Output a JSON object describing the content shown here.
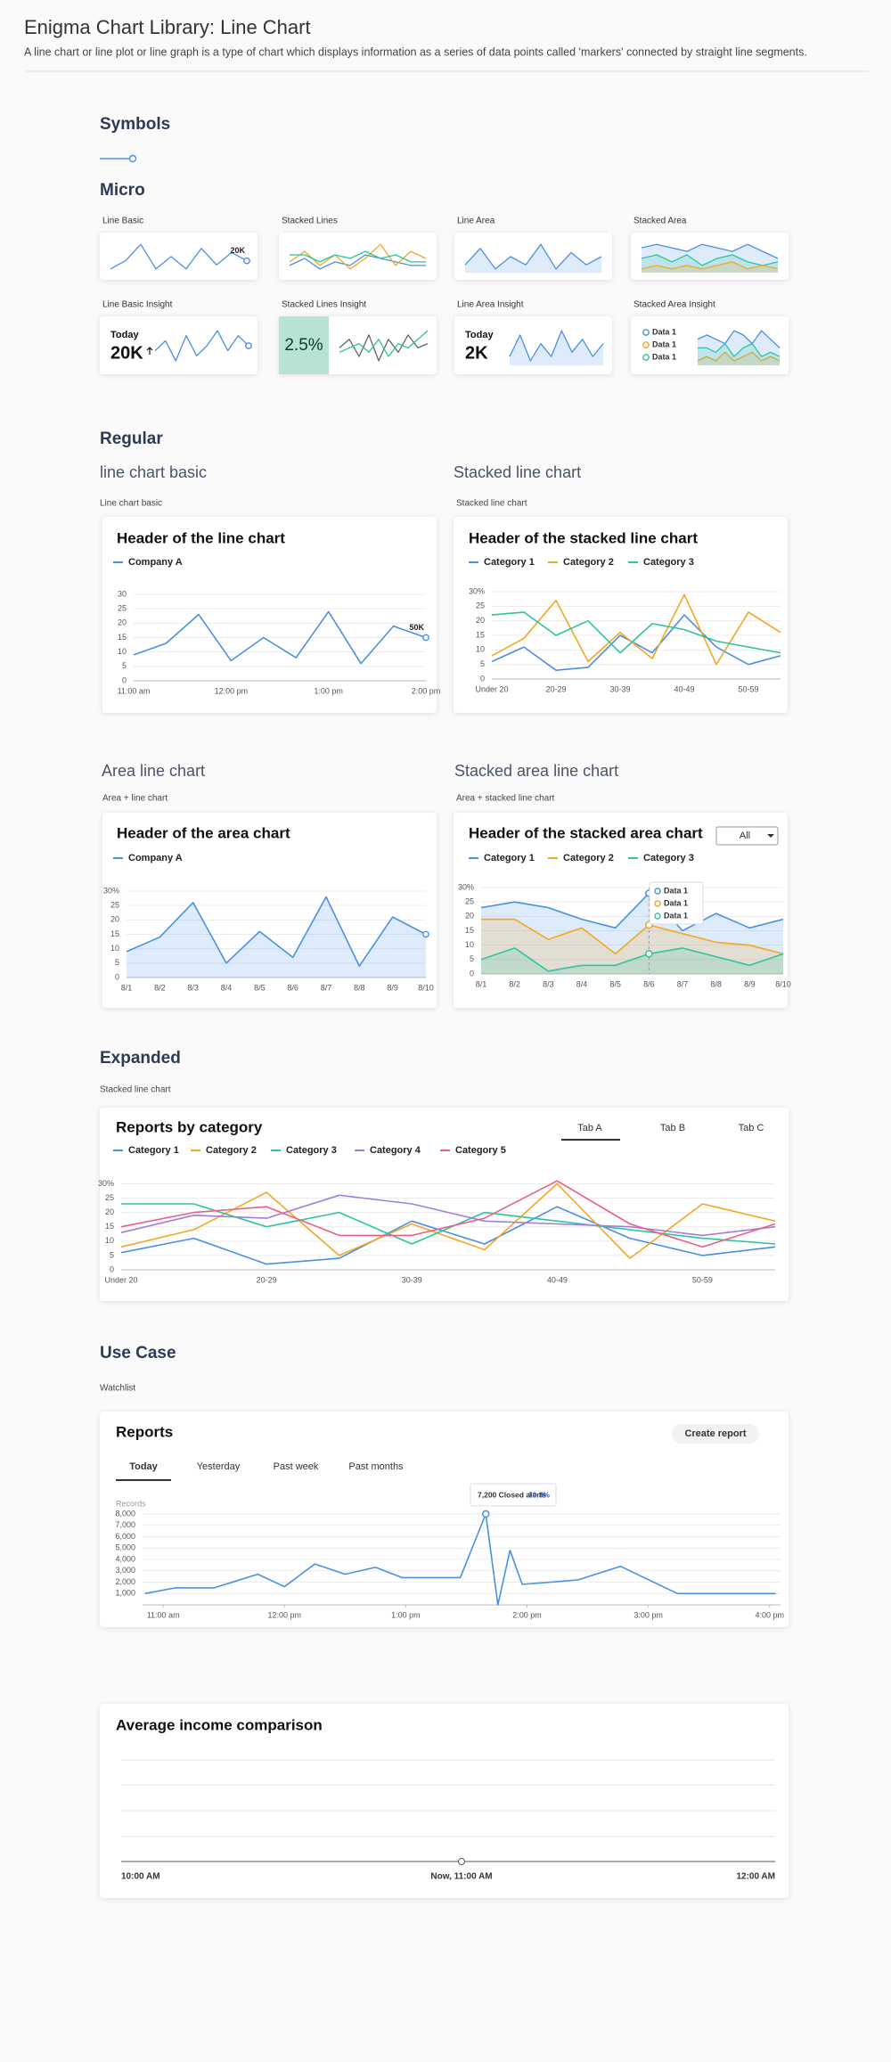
{
  "header": {
    "title": "Enigma Chart Library: Line Chart",
    "description": "A line chart or line plot or line graph is a type of chart which displays information as a series of data points called 'markers' connected by straight line segments."
  },
  "sections": {
    "symbols": "Symbols",
    "micro": "Micro",
    "regular": "Regular",
    "expanded": "Expanded",
    "use_case": "Use Case"
  },
  "micro_labels": [
    "Line Basic",
    "Stacked Lines",
    "Line Area",
    "Stacked Area",
    "Line Basic Insight",
    "Stacked Lines Insight",
    "Line Area Insight",
    "Stacked Area Insight"
  ],
  "regular_headings": [
    "line chart basic",
    "Stacked line chart",
    "Area line chart",
    "Stacked area line chart"
  ],
  "regular_captions": [
    "Line chart basic",
    "Stacked line chart",
    "Area + line chart",
    "Area + stacked line chart"
  ],
  "expanded_caption": "Stacked line chart",
  "use_case_caption": "Watchlist",
  "chart_data": [
    {
      "type": "line",
      "annotation": "20K",
      "series": [
        {
          "color": "#4a90e2",
          "values": [
            3,
            5,
            9,
            3,
            6,
            3,
            8,
            4,
            7,
            5
          ]
        }
      ]
    },
    {
      "type": "line",
      "series": [
        {
          "color": "#4a90e2",
          "values": [
            3,
            5,
            2,
            4,
            3,
            6,
            5,
            4,
            3,
            3
          ]
        },
        {
          "color": "#f5a623",
          "values": [
            4,
            7,
            3,
            6,
            2,
            5,
            9,
            3,
            7,
            5
          ]
        },
        {
          "color": "#2ec4a0",
          "values": [
            6,
            6,
            4,
            6,
            5,
            7,
            5,
            6,
            4,
            4
          ]
        }
      ]
    },
    {
      "type": "area",
      "series": [
        {
          "color": "#4a90e2",
          "values": [
            4,
            8,
            3,
            6,
            4,
            9,
            3,
            7,
            4,
            6
          ]
        }
      ]
    },
    {
      "type": "area",
      "series": [
        {
          "color": "#4a90e2",
          "values": [
            8,
            9,
            8,
            7,
            9,
            8,
            7,
            9,
            7,
            5
          ]
        },
        {
          "color": "#2ec4a0",
          "values": [
            5,
            6,
            4,
            6,
            3,
            5,
            6,
            4,
            3,
            4
          ]
        },
        {
          "color": "#f5a623",
          "values": [
            2,
            3,
            2,
            3,
            2,
            3,
            4,
            2,
            3,
            2
          ]
        }
      ]
    },
    {
      "type": "line",
      "kpi_label": "Today",
      "kpi_value": "20K",
      "series": [
        {
          "color": "#4a90e2",
          "values": [
            4,
            6,
            2,
            7,
            3,
            5,
            8,
            4,
            7,
            5
          ]
        }
      ]
    },
    {
      "type": "line",
      "kpi_value": "2.5%",
      "series": [
        {
          "color": "#666666",
          "values": [
            5,
            7,
            3,
            8,
            2,
            7,
            4,
            8,
            5,
            6
          ]
        },
        {
          "color": "#2ec4a0",
          "values": [
            4,
            5,
            6,
            4,
            7,
            3,
            6,
            5,
            7,
            9
          ]
        }
      ]
    },
    {
      "type": "area",
      "kpi_label": "Today",
      "kpi_value": "2K",
      "series": [
        {
          "color": "#4a90e2",
          "values": [
            3,
            8,
            2,
            6,
            3,
            9,
            4,
            7,
            3,
            6
          ]
        }
      ]
    },
    {
      "type": "area",
      "series": [
        {
          "name": "Data 1",
          "color": "#4a90e2",
          "values": [
            7,
            8,
            7,
            6,
            9,
            8,
            6,
            9,
            7,
            5
          ]
        },
        {
          "name": "Data 1",
          "color": "#f5a623",
          "values": [
            2,
            3,
            2,
            4,
            2,
            3,
            4,
            2,
            3,
            2
          ]
        },
        {
          "name": "Data 1",
          "color": "#2ec4a0",
          "values": [
            5,
            5,
            4,
            6,
            3,
            5,
            6,
            3,
            4,
            3
          ]
        }
      ]
    },
    {
      "type": "line",
      "title": "Header of the line chart",
      "annotation": "50K",
      "categories": [
        "11:00 am",
        null,
        null,
        "12:00 pm",
        null,
        null,
        "1:00 pm",
        null,
        null,
        "2:00 pm"
      ],
      "series": [
        {
          "name": "Company A",
          "color": "#4a90e2",
          "values": [
            9,
            13,
            23,
            7,
            15,
            8,
            24,
            6,
            19,
            15
          ]
        }
      ],
      "ylim": [
        0,
        30
      ],
      "yticks": [
        0,
        5,
        10,
        15,
        20,
        25,
        30
      ],
      "grid": true
    },
    {
      "type": "line",
      "title": "Header of the stacked line chart",
      "categories": [
        "Under 20",
        null,
        "20-29",
        null,
        "30-39",
        null,
        "40-49",
        null,
        "50-59",
        null
      ],
      "series": [
        {
          "name": "Category 1",
          "color": "#4a90e2",
          "values": [
            6,
            11,
            3,
            4,
            15,
            9,
            22,
            11,
            5,
            8
          ]
        },
        {
          "name": "Category 2",
          "color": "#f5a623",
          "values": [
            8,
            14,
            27,
            6,
            16,
            7,
            29,
            5,
            23,
            16
          ]
        },
        {
          "name": "Category 3",
          "color": "#2ec4a0",
          "values": [
            22,
            23,
            15,
            20,
            9,
            19,
            17,
            13,
            11,
            9
          ]
        }
      ],
      "ylim": [
        0,
        30
      ],
      "yticks": [
        0,
        5,
        10,
        15,
        20,
        25,
        {
          "value": 30,
          "label": "30%"
        }
      ],
      "grid": true
    },
    {
      "type": "area",
      "title": "Header of the area chart",
      "categories": [
        "8/1",
        "8/2",
        "8/3",
        "8/4",
        "8/5",
        "8/6",
        "8/7",
        "8/8",
        "8/9",
        "8/10"
      ],
      "series": [
        {
          "name": "Company A",
          "color": "#4a90e2",
          "values": [
            9,
            14,
            26,
            5,
            16,
            7,
            28,
            4,
            21,
            15
          ]
        }
      ],
      "ylim": [
        0,
        30
      ],
      "yticks": [
        0,
        5,
        10,
        15,
        20,
        25,
        {
          "value": 30,
          "label": "30%"
        }
      ],
      "grid": true
    },
    {
      "type": "area",
      "title": "Header of the stacked area chart",
      "dropdown": "All",
      "tooltip": [
        "Data 1",
        "Data 1",
        "Data 1"
      ],
      "categories": [
        "8/1",
        "8/2",
        "8/3",
        "8/4",
        "8/5",
        "8/6",
        "8/7",
        "8/8",
        "8/9",
        "8/10"
      ],
      "series": [
        {
          "name": "Category 1",
          "color": "#4a90e2",
          "values": [
            23,
            25,
            23,
            19,
            16,
            28,
            15,
            21,
            16,
            19
          ]
        },
        {
          "name": "Category 2",
          "color": "#f5a623",
          "values": [
            19,
            19,
            12,
            16,
            7,
            17,
            14,
            11,
            10,
            7
          ]
        },
        {
          "name": "Category 3",
          "color": "#2ec4a0",
          "values": [
            5,
            9,
            1,
            3,
            3,
            7,
            9,
            6,
            3,
            7
          ]
        }
      ],
      "ylim": [
        0,
        30
      ],
      "yticks": [
        0,
        5,
        10,
        15,
        20,
        25,
        {
          "value": 30,
          "label": "30%"
        }
      ],
      "grid": true
    },
    {
      "type": "line",
      "title": "Reports by category",
      "tabs": [
        "Tab A",
        "Tab B",
        "Tab C"
      ],
      "categories": [
        "Under 20",
        null,
        "20-29",
        null,
        "30-39",
        null,
        "40-49",
        null,
        "50-59",
        null
      ],
      "series": [
        {
          "name": "Category 1",
          "color": "#4a90e2",
          "values": [
            6,
            11,
            2,
            4,
            17,
            9,
            22,
            11,
            5,
            8
          ]
        },
        {
          "name": "Category 2",
          "color": "#f5a623",
          "values": [
            8,
            14,
            27,
            5,
            16,
            7,
            30,
            4,
            23,
            17
          ]
        },
        {
          "name": "Category 3",
          "color": "#2ec4a0",
          "values": [
            23,
            23,
            15,
            20,
            9,
            20,
            17,
            14,
            11,
            9
          ]
        },
        {
          "name": "Category 4",
          "color": "#a07fdc",
          "values": [
            13,
            19,
            18,
            26,
            23,
            17,
            16,
            15,
            12,
            15
          ]
        },
        {
          "name": "Category 5",
          "color": "#e8608a",
          "values": [
            15,
            20,
            22,
            12,
            12,
            18,
            31,
            16,
            8,
            16
          ]
        }
      ],
      "ylim": [
        0,
        32
      ],
      "yticks": [
        0,
        5,
        10,
        15,
        20,
        25,
        {
          "value": 30,
          "label": "30%"
        }
      ],
      "grid": true
    },
    {
      "type": "line",
      "title": "Reports",
      "button": "Create report",
      "tabs": [
        "Today",
        "Yesterday",
        "Past week",
        "Past months"
      ],
      "y_label": "Records",
      "tooltip": {
        "label": "7,200 Closed alerts",
        "change": "10.8%"
      },
      "x": [
        10.85,
        11.1,
        11.42,
        11.78,
        12.0,
        12.25,
        12.5,
        12.75,
        12.97,
        13.45,
        13.66,
        13.76,
        13.86,
        13.96,
        14.42,
        14.77,
        15.24,
        16.05
      ],
      "series": [
        {
          "color": "#4a90e2",
          "values": [
            1000,
            1500,
            1500,
            2700,
            1600,
            3600,
            2700,
            3300,
            2400,
            2400,
            8000,
            0,
            4800,
            1800,
            2200,
            3400,
            1000,
            1000
          ]
        }
      ],
      "xlim": [
        10.83,
        16.09
      ],
      "xticks": [
        {
          "value": 11,
          "label": "11:00 am"
        },
        {
          "value": 12,
          "label": "12:00 pm"
        },
        {
          "value": 13,
          "label": "1:00 pm"
        },
        {
          "value": 14,
          "label": "2:00 pm"
        },
        {
          "value": 15,
          "label": "3:00 pm"
        },
        {
          "value": 16,
          "label": "4:00 pm"
        }
      ],
      "ylim": [
        0,
        8000
      ],
      "yticks": [
        {
          "value": 1000,
          "label": "1,000"
        },
        {
          "value": 2000,
          "label": "2,000"
        },
        {
          "value": 3000,
          "label": "3,000"
        },
        {
          "value": 4000,
          "label": "4,000"
        },
        {
          "value": 5000,
          "label": "5,000"
        },
        {
          "value": 6000,
          "label": "6,000"
        },
        {
          "value": 7000,
          "label": "7,000"
        },
        {
          "value": 8000,
          "label": "8,000"
        }
      ],
      "grid": true
    },
    {
      "type": "line",
      "title": "Average income comparison",
      "categories": [
        "10:00 AM",
        "Now, 11:00 AM",
        "12:00 AM"
      ]
    }
  ]
}
